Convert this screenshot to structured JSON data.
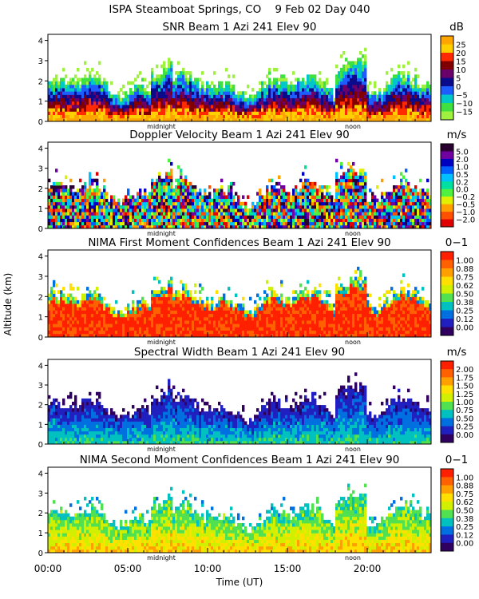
{
  "header": {
    "site": "ISPA Steamboat Springs, CO",
    "date": "9 Feb 02 Day 040"
  },
  "chart_data": {
    "type": "heatmap",
    "xlabel": "Time (UT)",
    "ylabel": "Altitude (km)",
    "xlim": [
      0,
      24
    ],
    "ylim": [
      0,
      4.3
    ],
    "x_tick_labels": [
      "00:00",
      "05:00",
      "10:00",
      "15:00",
      "20:00"
    ],
    "x_tick_hours": [
      0,
      5,
      10,
      15,
      20
    ],
    "y_ticks": [
      0,
      1,
      2,
      3,
      4
    ],
    "markers": [
      {
        "label": "midnight",
        "hour": 7.1
      },
      {
        "label": "noon",
        "hour": 19.1
      }
    ],
    "panels": [
      {
        "title": "SNR Beam 1 Azi 241 Elev 90",
        "unit": "dB",
        "colorbar": {
          "labels": [
            "25",
            "20",
            "15",
            "10",
            "5",
            "0",
            "−5",
            "−10",
            "−15"
          ],
          "colors": [
            "#ffa500",
            "#ffd000",
            "#ff2a00",
            "#800000",
            "#6a006a",
            "#0a0a8a",
            "#1e5cff",
            "#00c8c8",
            "#40e040",
            "#a0f040"
          ]
        }
      },
      {
        "title": "Doppler Velocity Beam 1 Azi 241 Elev 90",
        "unit": "m/s",
        "colorbar": {
          "labels": [
            "5.0",
            "2.0",
            "1.0",
            "0.5",
            "0.2",
            "0.0",
            "−0.2",
            "−0.5",
            "−1.0",
            "−2.0"
          ],
          "colors": [
            "#2a0030",
            "#7000a0",
            "#0000c0",
            "#0060ff",
            "#00c0ff",
            "#00e0a0",
            "#50f040",
            "#e0f000",
            "#ffa000",
            "#ff5000",
            "#e00000"
          ]
        }
      },
      {
        "title": "NIMA First Moment Confidences Beam 1 Azi 241 Elev 90",
        "unit": "0−1",
        "colorbar": {
          "labels": [
            "1.00",
            "0.88",
            "0.75",
            "0.62",
            "0.50",
            "0.38",
            "0.25",
            "0.12",
            "0.00"
          ],
          "colors": [
            "#ff2000",
            "#ff6000",
            "#ffa000",
            "#ffe000",
            "#d0f000",
            "#50e050",
            "#00c0c0",
            "#0070e0",
            "#2020c0",
            "#300060"
          ]
        }
      },
      {
        "title": "Spectral Width Beam 1 Azi 241 Elev 90",
        "unit": "m/s",
        "colorbar": {
          "labels": [
            "2.00",
            "1.75",
            "1.50",
            "1.25",
            "1.00",
            "0.75",
            "0.50",
            "0.25",
            "0.00"
          ],
          "colors": [
            "#ff2000",
            "#ff6000",
            "#ffa000",
            "#ffe000",
            "#d0f000",
            "#50e050",
            "#00c0c0",
            "#0070e0",
            "#2020c0",
            "#300060"
          ]
        }
      },
      {
        "title": "NIMA Second Moment Confidences Beam 1 Azi 241 Elev 90",
        "unit": "0−1",
        "colorbar": {
          "labels": [
            "1.00",
            "0.88",
            "0.75",
            "0.62",
            "0.50",
            "0.38",
            "0.25",
            "0.12",
            "0.00"
          ],
          "colors": [
            "#ff2000",
            "#ff6000",
            "#ffa000",
            "#ffe000",
            "#d0f000",
            "#50e050",
            "#00c0c0",
            "#0070e0",
            "#2020c0",
            "#300060"
          ]
        }
      }
    ]
  }
}
